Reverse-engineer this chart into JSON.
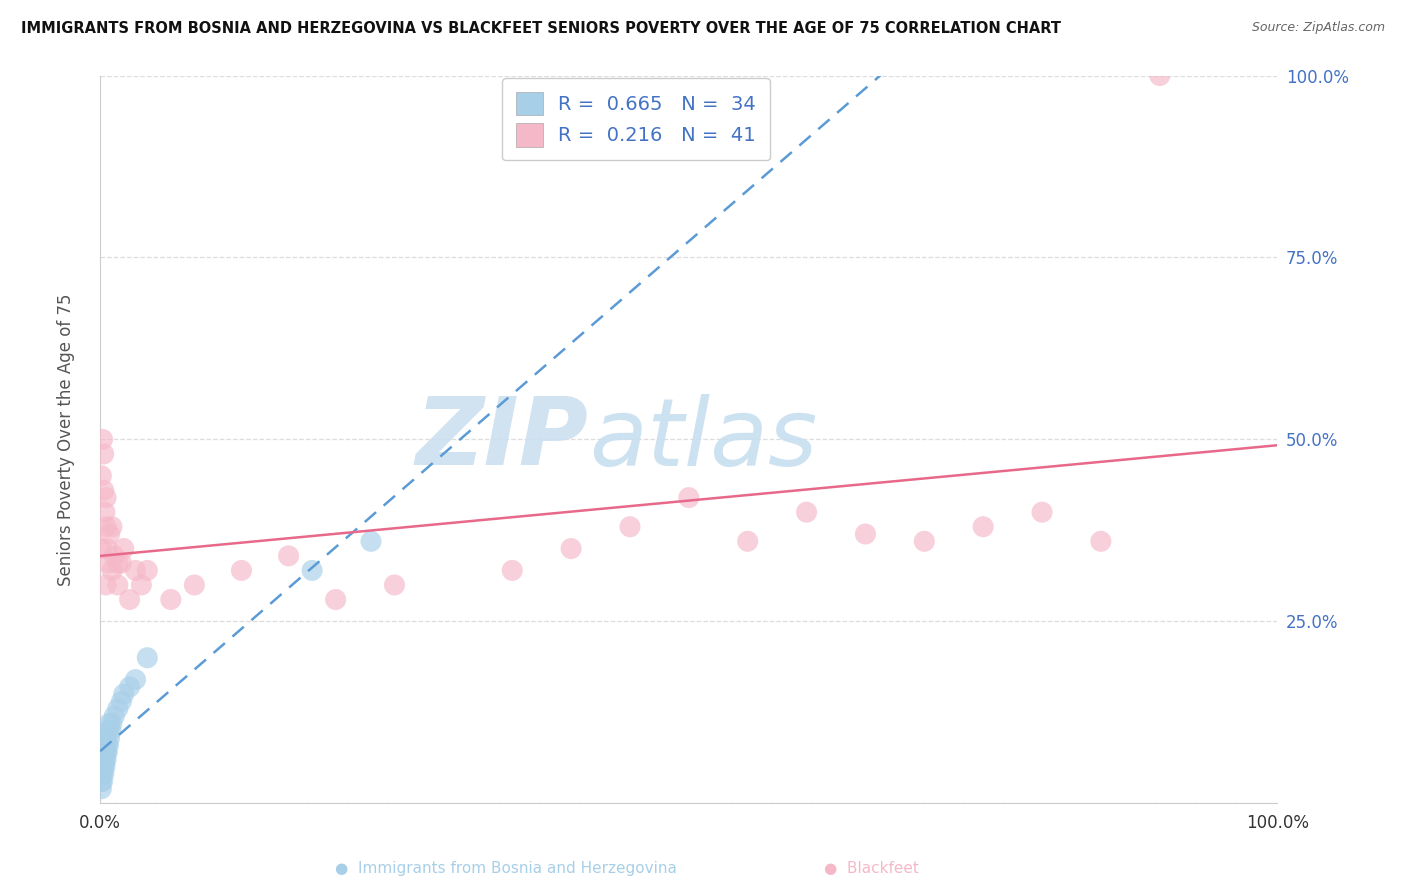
{
  "title": "IMMIGRANTS FROM BOSNIA AND HERZEGOVINA VS BLACKFEET SENIORS POVERTY OVER THE AGE OF 75 CORRELATION CHART",
  "source": "Source: ZipAtlas.com",
  "ylabel": "Seniors Poverty Over the Age of 75",
  "xlim": [
    0.0,
    1.0
  ],
  "ylim": [
    0.0,
    1.0
  ],
  "ytick_values": [
    0.0,
    0.25,
    0.5,
    0.75,
    1.0
  ],
  "ytick_pct_labels": [
    "",
    "25.0%",
    "50.0%",
    "75.0%",
    "100.0%"
  ],
  "xtick_values": [
    0.0,
    1.0
  ],
  "xtick_pct_labels": [
    "0.0%",
    "100.0%"
  ],
  "blue_color": "#a8cfe8",
  "pink_color": "#f5b8c8",
  "blue_line_color": "#5b9bd5",
  "pink_line_color": "#e8688a",
  "blue_R": 0.665,
  "pink_R": 0.216,
  "blue_N": 34,
  "pink_N": 41,
  "blue_scatter_x": [
    0.001,
    0.001,
    0.001,
    0.002,
    0.002,
    0.002,
    0.002,
    0.003,
    0.003,
    0.003,
    0.003,
    0.004,
    0.004,
    0.004,
    0.005,
    0.005,
    0.005,
    0.006,
    0.006,
    0.007,
    0.007,
    0.008,
    0.008,
    0.009,
    0.01,
    0.012,
    0.015,
    0.018,
    0.02,
    0.025,
    0.03,
    0.04,
    0.18,
    0.23
  ],
  "blue_scatter_y": [
    0.02,
    0.03,
    0.04,
    0.03,
    0.04,
    0.05,
    0.06,
    0.04,
    0.05,
    0.06,
    0.07,
    0.05,
    0.06,
    0.08,
    0.06,
    0.07,
    0.09,
    0.07,
    0.08,
    0.08,
    0.1,
    0.09,
    0.11,
    0.1,
    0.11,
    0.12,
    0.13,
    0.14,
    0.15,
    0.16,
    0.17,
    0.2,
    0.32,
    0.36
  ],
  "pink_scatter_x": [
    0.001,
    0.001,
    0.002,
    0.003,
    0.003,
    0.004,
    0.005,
    0.005,
    0.006,
    0.007,
    0.008,
    0.01,
    0.012,
    0.015,
    0.018,
    0.02,
    0.025,
    0.03,
    0.035,
    0.04,
    0.06,
    0.08,
    0.12,
    0.16,
    0.2,
    0.25,
    0.35,
    0.4,
    0.45,
    0.5,
    0.55,
    0.6,
    0.65,
    0.7,
    0.75,
    0.8,
    0.85,
    0.9,
    0.01,
    0.015,
    0.005
  ],
  "pink_scatter_y": [
    0.35,
    0.45,
    0.5,
    0.43,
    0.48,
    0.4,
    0.42,
    0.38,
    0.35,
    0.33,
    0.37,
    0.32,
    0.34,
    0.3,
    0.33,
    0.35,
    0.28,
    0.32,
    0.3,
    0.32,
    0.28,
    0.3,
    0.32,
    0.34,
    0.28,
    0.3,
    0.32,
    0.35,
    0.38,
    0.42,
    0.36,
    0.4,
    0.37,
    0.36,
    0.38,
    0.4,
    0.36,
    1.0,
    0.38,
    0.33,
    0.3
  ],
  "grid_color": "#dddddd",
  "watermark_zip_color": "#cce0f0",
  "watermark_atlas_color": "#c8dff0",
  "bottom_blue_label": "Immigrants from Bosnia and Herzegovina",
  "bottom_pink_label": "Blackfeet"
}
